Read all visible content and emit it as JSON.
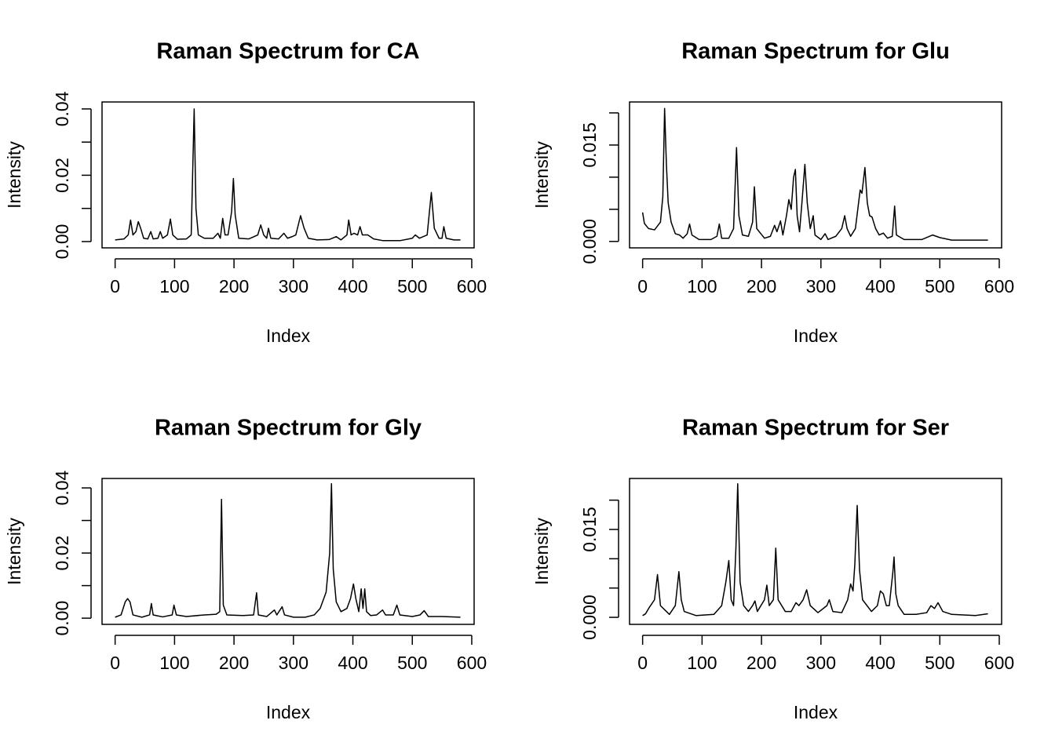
{
  "chart_data": [
    {
      "type": "line",
      "title": "Raman Spectrum for CA",
      "x_label": "Index",
      "y_label": "Intensity",
      "color": "#000000",
      "xlim": [
        -22,
        604
      ],
      "ylim": [
        -0.0019,
        0.0421
      ],
      "xticks": [
        0,
        100,
        200,
        300,
        400,
        500,
        600
      ],
      "yticks": [
        {
          "value": 0,
          "label": "0.00"
        },
        {
          "value": 0.01,
          "label": null
        },
        0.02,
        {
          "value": 0.03,
          "label": null
        },
        0.04
      ],
      "x": [
        0,
        15,
        22,
        26,
        30,
        35,
        39,
        43,
        48,
        55,
        60,
        64,
        72,
        76,
        80,
        88,
        93,
        97,
        105,
        120,
        128,
        133,
        136,
        140,
        150,
        165,
        173,
        177,
        181,
        185,
        190,
        196,
        199,
        202,
        208,
        225,
        240,
        245,
        250,
        255,
        258,
        262,
        275,
        284,
        290,
        298,
        304,
        312,
        318,
        325,
        340,
        360,
        372,
        380,
        390,
        393,
        397,
        402,
        408,
        412,
        416,
        425,
        435,
        450,
        480,
        500,
        505,
        512,
        525,
        532,
        537,
        545,
        550,
        553,
        557,
        570,
        581
      ],
      "values": [
        0.0005,
        0.0008,
        0.002,
        0.0065,
        0.002,
        0.003,
        0.006,
        0.004,
        0.001,
        0.0008,
        0.003,
        0.0008,
        0.001,
        0.003,
        0.001,
        0.002,
        0.0068,
        0.002,
        0.0007,
        0.0008,
        0.002,
        0.04,
        0.01,
        0.002,
        0.001,
        0.001,
        0.0025,
        0.001,
        0.007,
        0.002,
        0.002,
        0.009,
        0.019,
        0.008,
        0.001,
        0.0008,
        0.002,
        0.005,
        0.002,
        0.001,
        0.004,
        0.001,
        0.0008,
        0.0025,
        0.001,
        0.0015,
        0.002,
        0.0078,
        0.004,
        0.001,
        0.0005,
        0.0006,
        0.0015,
        0.0005,
        0.002,
        0.0065,
        0.002,
        0.0025,
        0.002,
        0.0045,
        0.002,
        0.002,
        0.0008,
        0.0003,
        0.0003,
        0.001,
        0.002,
        0.001,
        0.002,
        0.0148,
        0.004,
        0.001,
        0.001,
        0.0045,
        0.001,
        0.0005,
        0.0005
      ]
    },
    {
      "type": "line",
      "title": "Raman Spectrum for Glu",
      "x_label": "Index",
      "y_label": "Intensity",
      "color": "#000000",
      "xlim": [
        -22,
        604
      ],
      "ylim": [
        -0.001,
        0.0217
      ],
      "xticks": [
        0,
        100,
        200,
        300,
        400,
        500,
        600
      ],
      "yticks": [
        {
          "value": 0,
          "label": "0.000"
        },
        {
          "value": 0.005,
          "label": null
        },
        {
          "value": 0.01,
          "label": null
        },
        0.015,
        {
          "value": 0.02,
          "label": null
        }
      ],
      "x": [
        0,
        3,
        10,
        20,
        30,
        34,
        37,
        40,
        43,
        48,
        55,
        62,
        68,
        75,
        79,
        83,
        95,
        115,
        125,
        129,
        133,
        145,
        153,
        158,
        162,
        168,
        178,
        185,
        188,
        192,
        205,
        215,
        222,
        226,
        232,
        236,
        242,
        246,
        250,
        254,
        257,
        260,
        264,
        268,
        273,
        277,
        282,
        287,
        290,
        300,
        307,
        312,
        325,
        335,
        340,
        344,
        350,
        358,
        366,
        369,
        374,
        378,
        382,
        386,
        392,
        398,
        405,
        412,
        420,
        424,
        427,
        440,
        470,
        488,
        500,
        520,
        581
      ],
      "values": [
        0.0045,
        0.0028,
        0.002,
        0.0018,
        0.003,
        0.007,
        0.0207,
        0.012,
        0.006,
        0.003,
        0.0012,
        0.001,
        0.0005,
        0.0012,
        0.0027,
        0.001,
        0.0003,
        0.0003,
        0.0008,
        0.0027,
        0.0005,
        0.0005,
        0.002,
        0.0146,
        0.004,
        0.001,
        0.0008,
        0.003,
        0.0085,
        0.002,
        0.0005,
        0.0008,
        0.0025,
        0.0015,
        0.0032,
        0.001,
        0.004,
        0.0065,
        0.005,
        0.01,
        0.0112,
        0.004,
        0.0015,
        0.006,
        0.012,
        0.006,
        0.002,
        0.004,
        0.001,
        0.0003,
        0.0012,
        0.0003,
        0.0008,
        0.002,
        0.004,
        0.002,
        0.0008,
        0.002,
        0.008,
        0.0075,
        0.0115,
        0.006,
        0.004,
        0.0038,
        0.002,
        0.001,
        0.0013,
        0.0005,
        0.0008,
        0.0055,
        0.001,
        0.0003,
        0.0003,
        0.001,
        0.0006,
        0.0002,
        0.0002
      ]
    },
    {
      "type": "line",
      "title": "Raman Spectrum for Gly",
      "x_label": "Index",
      "y_label": "Intensity",
      "color": "#000000",
      "xlim": [
        -22,
        604
      ],
      "ylim": [
        -0.0019,
        0.0429
      ],
      "xticks": [
        0,
        100,
        200,
        300,
        400,
        500,
        600
      ],
      "yticks": [
        {
          "value": 0,
          "label": "0.00"
        },
        {
          "value": 0.01,
          "label": null
        },
        0.02,
        {
          "value": 0.03,
          "label": null
        },
        0.04
      ],
      "x": [
        0,
        10,
        17,
        21,
        25,
        30,
        45,
        58,
        61,
        64,
        80,
        96,
        99,
        103,
        120,
        150,
        170,
        176,
        179,
        182,
        188,
        215,
        233,
        238,
        241,
        255,
        268,
        272,
        281,
        285,
        300,
        320,
        335,
        345,
        355,
        361,
        364,
        367,
        372,
        380,
        390,
        396,
        401,
        405,
        410,
        414,
        417,
        420,
        423,
        430,
        440,
        450,
        455,
        468,
        474,
        479,
        500,
        513,
        520,
        527,
        550,
        581
      ],
      "values": [
        0.0003,
        0.001,
        0.005,
        0.006,
        0.005,
        0.001,
        0.0003,
        0.001,
        0.0045,
        0.001,
        0.0004,
        0.001,
        0.004,
        0.001,
        0.0005,
        0.001,
        0.0012,
        0.002,
        0.0365,
        0.004,
        0.001,
        0.0008,
        0.001,
        0.0078,
        0.001,
        0.0005,
        0.0025,
        0.001,
        0.0035,
        0.001,
        0.0003,
        0.0003,
        0.001,
        0.003,
        0.008,
        0.02,
        0.0413,
        0.015,
        0.005,
        0.002,
        0.003,
        0.006,
        0.0105,
        0.006,
        0.002,
        0.009,
        0.003,
        0.009,
        0.002,
        0.0008,
        0.001,
        0.0025,
        0.001,
        0.001,
        0.004,
        0.001,
        0.0005,
        0.001,
        0.0023,
        0.0005,
        0.0005,
        0.0003
      ]
    },
    {
      "type": "line",
      "title": "Raman Spectrum for Ser",
      "x_label": "Index",
      "y_label": "Intensity",
      "color": "#000000",
      "xlim": [
        -22,
        604
      ],
      "ylim": [
        -0.0012,
        0.0237
      ],
      "xticks": [
        0,
        100,
        200,
        300,
        400,
        500,
        600
      ],
      "yticks": [
        {
          "value": 0,
          "label": "0.000"
        },
        {
          "value": 0.005,
          "label": null
        },
        {
          "value": 0.01,
          "label": null
        },
        0.015,
        {
          "value": 0.02,
          "label": null
        }
      ],
      "x": [
        0,
        5,
        10,
        20,
        25,
        30,
        38,
        45,
        55,
        61,
        65,
        70,
        90,
        120,
        133,
        140,
        145,
        149,
        153,
        157,
        160,
        164,
        170,
        178,
        185,
        189,
        193,
        205,
        209,
        213,
        220,
        224,
        228,
        240,
        250,
        258,
        263,
        270,
        276,
        282,
        295,
        310,
        314,
        320,
        335,
        345,
        350,
        354,
        357,
        361,
        365,
        370,
        385,
        395,
        400,
        405,
        410,
        415,
        421,
        423,
        426,
        430,
        440,
        460,
        478,
        485,
        491,
        497,
        505,
        520,
        560,
        581
      ],
      "values": [
        0.0003,
        0.0006,
        0.0015,
        0.003,
        0.0073,
        0.002,
        0.0012,
        0.0005,
        0.002,
        0.0078,
        0.003,
        0.001,
        0.0003,
        0.0005,
        0.002,
        0.006,
        0.0097,
        0.003,
        0.002,
        0.012,
        0.0228,
        0.006,
        0.002,
        0.001,
        0.002,
        0.0028,
        0.001,
        0.003,
        0.0055,
        0.002,
        0.003,
        0.0118,
        0.003,
        0.001,
        0.001,
        0.0025,
        0.002,
        0.003,
        0.0047,
        0.002,
        0.0008,
        0.002,
        0.003,
        0.001,
        0.0008,
        0.003,
        0.0057,
        0.0045,
        0.009,
        0.0191,
        0.008,
        0.003,
        0.001,
        0.002,
        0.0045,
        0.004,
        0.002,
        0.002,
        0.0077,
        0.0103,
        0.004,
        0.002,
        0.0005,
        0.0005,
        0.0008,
        0.002,
        0.0015,
        0.0025,
        0.001,
        0.0005,
        0.0003,
        0.0006
      ]
    }
  ]
}
